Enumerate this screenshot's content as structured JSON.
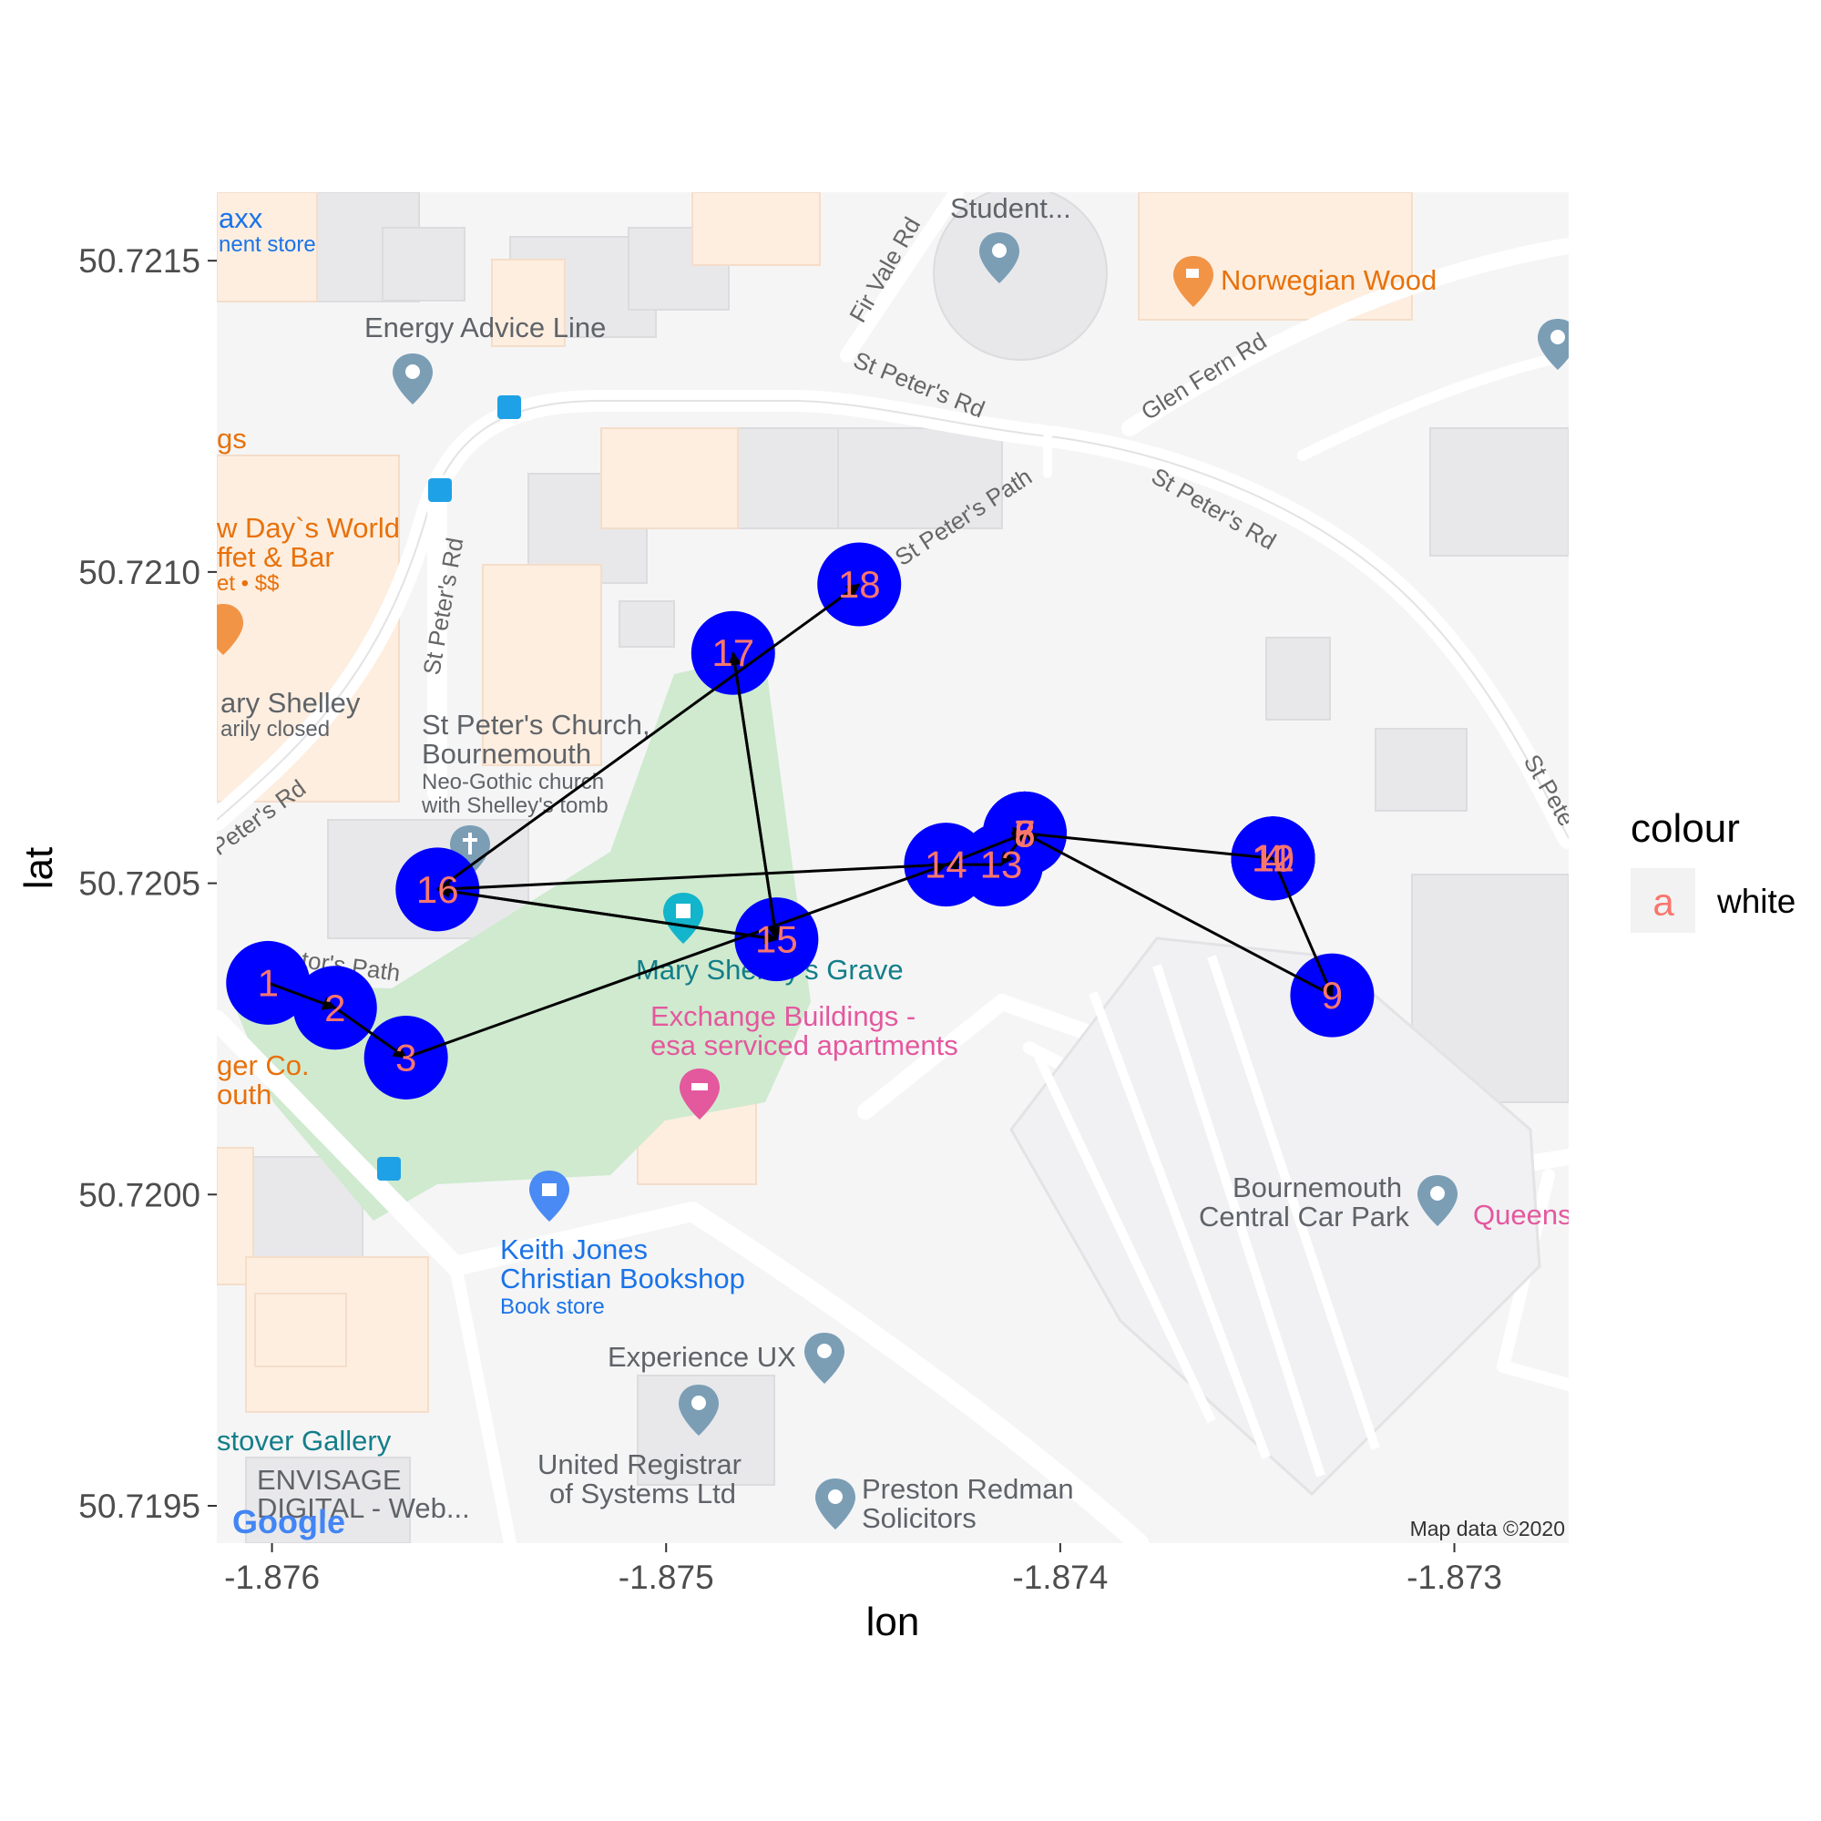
{
  "chart_data": {
    "type": "scatter",
    "xlabel": "lon",
    "ylabel": "lat",
    "xlim": [
      -1.87614,
      -1.87271
    ],
    "ylim": [
      50.71944,
      50.72161
    ],
    "x_ticks": [
      {
        "value": -1.876,
        "label": "-1.876"
      },
      {
        "value": -1.875,
        "label": "-1.875"
      },
      {
        "value": -1.874,
        "label": "-1.874"
      },
      {
        "value": -1.873,
        "label": "-1.873"
      }
    ],
    "y_ticks": [
      {
        "value": 50.7195,
        "label": "50.7195"
      },
      {
        "value": 50.72,
        "label": "50.7200"
      },
      {
        "value": 50.7205,
        "label": "50.7205"
      },
      {
        "value": 50.721,
        "label": "50.7210"
      },
      {
        "value": 50.7215,
        "label": "50.7215"
      }
    ],
    "point_color": "#0000ff",
    "label_color": "#f8766d",
    "path_color": "#000000",
    "points": [
      {
        "id": "1",
        "lon": -1.87601,
        "lat": 50.72034
      },
      {
        "id": "2",
        "lon": -1.87584,
        "lat": 50.7203
      },
      {
        "id": "3",
        "lon": -1.87566,
        "lat": 50.72022
      },
      {
        "id": "4",
        "lon": -1.87346,
        "lat": 50.72054
      },
      {
        "id": "5",
        "lon": -1.87409,
        "lat": 50.72058
      },
      {
        "id": "6",
        "lon": -1.87409,
        "lat": 50.72058
      },
      {
        "id": "7",
        "lon": -1.87409,
        "lat": 50.72058
      },
      {
        "id": "8",
        "lon": -1.87409,
        "lat": 50.72058
      },
      {
        "id": "9",
        "lon": -1.87331,
        "lat": 50.72032
      },
      {
        "id": "10",
        "lon": -1.87346,
        "lat": 50.72054
      },
      {
        "id": "11",
        "lon": -1.87346,
        "lat": 50.72054
      },
      {
        "id": "12",
        "lon": -1.87346,
        "lat": 50.72054
      },
      {
        "id": "13",
        "lon": -1.87415,
        "lat": 50.72053
      },
      {
        "id": "14",
        "lon": -1.87429,
        "lat": 50.72053
      },
      {
        "id": "15",
        "lon": -1.87472,
        "lat": 50.72041
      },
      {
        "id": "16",
        "lon": -1.87558,
        "lat": 50.72049
      },
      {
        "id": "17",
        "lon": -1.87483,
        "lat": 50.72087
      },
      {
        "id": "18",
        "lon": -1.87451,
        "lat": 50.72098
      }
    ],
    "path_order": [
      "1",
      "2",
      "3",
      "14",
      "7",
      "8",
      "12",
      "9",
      "5",
      "13",
      "14",
      "16",
      "15",
      "17",
      "15",
      "16",
      "18"
    ],
    "legend": {
      "title": "colour",
      "key_glyph": "a",
      "entry": "white"
    }
  },
  "map": {
    "places": [
      {
        "name": "Energy Advice Line",
        "color": "#5f6368"
      },
      {
        "name": "Student...",
        "color": "#5f6368"
      },
      {
        "name": "Norwegian Wood",
        "color": "#e8710a"
      },
      {
        "name": "axx",
        "color": "#1a73e8"
      },
      {
        "name": "nent store",
        "color": "#1a73e8"
      },
      {
        "name": "gs",
        "color": "#e8710a"
      },
      {
        "name": "w Day`s World",
        "color": "#e8710a"
      },
      {
        "name": "ffet & Bar",
        "color": "#e8710a"
      },
      {
        "name": "et • $$",
        "color": "#e8710a"
      },
      {
        "name": "ary Shelley",
        "color": "#5f6368"
      },
      {
        "name": "arily closed",
        "color": "#5f6368"
      },
      {
        "name": "St Peter's Church,",
        "color": "#5f6368"
      },
      {
        "name": "Bournemouth",
        "color": "#5f6368"
      },
      {
        "name": "Neo-Gothic church",
        "color": "#5f6368"
      },
      {
        "name": "with Shelley's tomb",
        "color": "#5f6368"
      },
      {
        "name": "Mary Shelley's Grave",
        "color": "#137e89"
      },
      {
        "name": "Exchange Buildings -",
        "color": "#e4589e"
      },
      {
        "name": "esa serviced apartments",
        "color": "#e4589e"
      },
      {
        "name": "ger Co.",
        "color": "#e8710a"
      },
      {
        "name": "outh",
        "color": "#e8710a"
      },
      {
        "name": "Keith Jones",
        "color": "#1a73e8"
      },
      {
        "name": "Christian Bookshop",
        "color": "#1a73e8"
      },
      {
        "name": "Book store",
        "color": "#1a73e8"
      },
      {
        "name": "Experience UX",
        "color": "#5f6368"
      },
      {
        "name": "United Registrar",
        "color": "#5f6368"
      },
      {
        "name": "of Systems Ltd",
        "color": "#5f6368"
      },
      {
        "name": "Preston Redman",
        "color": "#5f6368"
      },
      {
        "name": "Solicitors",
        "color": "#5f6368"
      },
      {
        "name": "stover Gallery",
        "color": "#137e89"
      },
      {
        "name": "ENVISAGE",
        "color": "#5f6368"
      },
      {
        "name": "DIGITAL - Web...",
        "color": "#5f6368"
      },
      {
        "name": "Bournemouth",
        "color": "#5f6368"
      },
      {
        "name": "Central Car Park",
        "color": "#5f6368"
      },
      {
        "name": "Queens",
        "color": "#e4589e"
      }
    ],
    "roads": [
      "Fir Vale Rd",
      "St Peter's Rd",
      "Glen Fern Rd",
      "St Peter's Rd",
      "St Peter's Path",
      "St Peter's Rd",
      "Peter's Rd",
      "St Pete",
      "tor's Path"
    ],
    "attribution": "Map data ©2020",
    "logo": "Google"
  }
}
